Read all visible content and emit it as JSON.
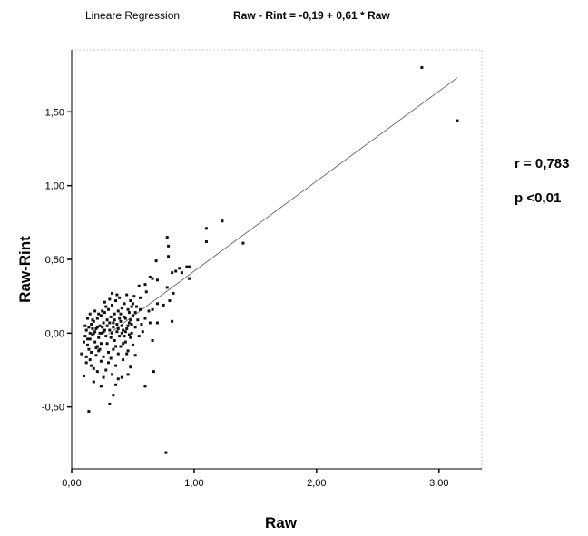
{
  "header": {
    "regression_label": "Lineare Regression",
    "equation": "Raw - Rint = -0,19 + 0,61 * Raw"
  },
  "stats": {
    "r": "r = 0,783",
    "p": "p <0,01"
  },
  "chart_data": {
    "type": "scatter",
    "xlabel": "Raw",
    "ylabel": "Raw-Rint",
    "xlim": [
      0.0,
      3.35
    ],
    "ylim": [
      -0.92,
      1.92
    ],
    "xticks": [
      0,
      1,
      2,
      3
    ],
    "xtick_labels": [
      "0,00",
      "1,00",
      "2,00",
      "3,00"
    ],
    "yticks": [
      -0.5,
      0,
      0.5,
      1,
      1.5
    ],
    "ytick_labels": [
      "-0,50",
      "0,00",
      "0,50",
      "1,00",
      "1,50"
    ],
    "regression": {
      "intercept": -0.19,
      "slope": 0.61,
      "x_range": [
        0.3,
        3.15
      ]
    },
    "grid": false,
    "series": [
      {
        "points": [
          [
            2.86,
            1.8
          ],
          [
            3.15,
            1.44
          ],
          [
            1.23,
            0.76
          ],
          [
            1.1,
            0.71
          ],
          [
            1.1,
            0.62
          ],
          [
            1.4,
            0.61
          ],
          [
            0.78,
            0.65
          ],
          [
            0.79,
            0.59
          ],
          [
            0.79,
            0.52
          ],
          [
            0.69,
            0.49
          ],
          [
            0.88,
            0.44
          ],
          [
            0.94,
            0.45
          ],
          [
            0.96,
            0.45
          ],
          [
            0.82,
            0.41
          ],
          [
            0.85,
            0.42
          ],
          [
            0.9,
            0.41
          ],
          [
            0.96,
            0.37
          ],
          [
            0.78,
            0.31
          ],
          [
            0.83,
            0.27
          ],
          [
            0.8,
            0.22
          ],
          [
            0.75,
            0.19
          ],
          [
            0.7,
            0.2
          ],
          [
            0.6,
            0.33
          ],
          [
            0.55,
            0.32
          ],
          [
            0.64,
            0.38
          ],
          [
            0.66,
            0.37
          ],
          [
            0.7,
            0.36
          ],
          [
            0.61,
            0.28
          ],
          [
            0.56,
            0.24
          ],
          [
            0.66,
            0.16
          ],
          [
            0.6,
            0.1
          ],
          [
            0.64,
            0.07
          ],
          [
            0.63,
            0.15
          ],
          [
            0.7,
            0.07
          ],
          [
            0.66,
            -0.05
          ],
          [
            0.82,
            0.08
          ],
          [
            0.67,
            -0.26
          ],
          [
            0.6,
            -0.36
          ],
          [
            0.77,
            -0.81
          ],
          [
            0.14,
            -0.53
          ],
          [
            0.31,
            -0.48
          ],
          [
            0.34,
            -0.42
          ],
          [
            0.36,
            -0.35
          ],
          [
            0.24,
            -0.36
          ],
          [
            0.41,
            -0.3
          ],
          [
            0.46,
            -0.28
          ],
          [
            0.48,
            -0.23
          ],
          [
            0.52,
            -0.15
          ],
          [
            0.1,
            -0.29
          ],
          [
            0.08,
            -0.14
          ],
          [
            0.12,
            -0.2
          ],
          [
            0.15,
            -0.18
          ],
          [
            0.16,
            -0.22
          ],
          [
            0.18,
            -0.24
          ],
          [
            0.2,
            -0.15
          ],
          [
            0.22,
            -0.12
          ],
          [
            0.24,
            -0.19
          ],
          [
            0.26,
            -0.16
          ],
          [
            0.28,
            -0.25
          ],
          [
            0.3,
            -0.2
          ],
          [
            0.32,
            -0.17
          ],
          [
            0.34,
            -0.11
          ],
          [
            0.36,
            -0.22
          ],
          [
            0.38,
            -0.14
          ],
          [
            0.4,
            -0.09
          ],
          [
            0.42,
            -0.18
          ],
          [
            0.44,
            -0.06
          ],
          [
            0.46,
            -0.12
          ],
          [
            0.48,
            -0.03
          ],
          [
            0.5,
            -0.08
          ],
          [
            0.1,
            -0.06
          ],
          [
            0.11,
            -0.02
          ],
          [
            0.12,
            0.02
          ],
          [
            0.13,
            -0.08
          ],
          [
            0.14,
            0.04
          ],
          [
            0.15,
            -0.04
          ],
          [
            0.16,
            0.06
          ],
          [
            0.17,
            -0.01
          ],
          [
            0.18,
            0.08
          ],
          [
            0.19,
            -0.06
          ],
          [
            0.2,
            0.03
          ],
          [
            0.21,
            0.1
          ],
          [
            0.22,
            -0.03
          ],
          [
            0.23,
            0.05
          ],
          [
            0.24,
            0.12
          ],
          [
            0.25,
            0.0
          ],
          [
            0.26,
            0.07
          ],
          [
            0.27,
            0.14
          ],
          [
            0.28,
            -0.02
          ],
          [
            0.29,
            0.09
          ],
          [
            0.3,
            0.16
          ],
          [
            0.31,
            0.02
          ],
          [
            0.32,
            0.11
          ],
          [
            0.33,
            0.19
          ],
          [
            0.34,
            0.04
          ],
          [
            0.35,
            0.13
          ],
          [
            0.36,
            0.22
          ],
          [
            0.37,
            0.06
          ],
          [
            0.38,
            0.15
          ],
          [
            0.39,
            0.24
          ],
          [
            0.4,
            0.08
          ],
          [
            0.41,
            0.17
          ],
          [
            0.42,
            0.02
          ],
          [
            0.43,
            0.2
          ],
          [
            0.44,
            0.1
          ],
          [
            0.45,
            0.26
          ],
          [
            0.46,
            0.05
          ],
          [
            0.47,
            0.14
          ],
          [
            0.48,
            0.22
          ],
          [
            0.49,
            0.0
          ],
          [
            0.5,
            0.12
          ],
          [
            0.51,
            0.25
          ],
          [
            0.52,
            0.04
          ],
          [
            0.53,
            0.18
          ],
          [
            0.54,
            0.09
          ],
          [
            0.56,
            0.16
          ],
          [
            0.58,
            0.01
          ],
          [
            0.13,
            0.1
          ],
          [
            0.15,
            0.13
          ],
          [
            0.17,
            0.09
          ],
          [
            0.19,
            0.15
          ],
          [
            0.21,
            -0.09
          ],
          [
            0.23,
            -0.11
          ],
          [
            0.25,
            0.15
          ],
          [
            0.27,
            0.21
          ],
          [
            0.29,
            -0.07
          ],
          [
            0.31,
            0.23
          ],
          [
            0.33,
            0.27
          ],
          [
            0.35,
            -0.05
          ],
          [
            0.37,
            0.26
          ],
          [
            0.39,
            -0.02
          ],
          [
            0.41,
            0.05
          ],
          [
            0.43,
            0.11
          ],
          [
            0.45,
            -0.14
          ],
          [
            0.47,
            0.07
          ],
          [
            0.49,
            0.18
          ],
          [
            0.14,
            -0.11
          ],
          [
            0.16,
            -0.13
          ],
          [
            0.18,
            0.0
          ],
          [
            0.2,
            -0.1
          ],
          [
            0.22,
            0.13
          ],
          [
            0.24,
            -0.07
          ],
          [
            0.26,
            0.01
          ],
          [
            0.28,
            0.18
          ],
          [
            0.3,
            -0.13
          ],
          [
            0.32,
            -0.03
          ],
          [
            0.34,
            0.07
          ],
          [
            0.36,
            -0.09
          ],
          [
            0.38,
            0.03
          ],
          [
            0.4,
            0.13
          ],
          [
            0.42,
            -0.07
          ],
          [
            0.44,
            0.01
          ],
          [
            0.46,
            0.16
          ],
          [
            0.48,
            0.09
          ],
          [
            0.5,
            0.2
          ],
          [
            0.52,
            0.14
          ],
          [
            0.12,
            -0.16
          ],
          [
            0.11,
            0.05
          ],
          [
            0.13,
            -0.04
          ],
          [
            0.15,
            0.0
          ],
          [
            0.17,
            0.03
          ],
          [
            0.19,
            0.01
          ],
          [
            0.21,
            0.04
          ],
          [
            0.23,
            0.0
          ],
          [
            0.25,
            0.04
          ],
          [
            0.27,
            0.02
          ],
          [
            0.29,
            0.05
          ],
          [
            0.31,
            0.07
          ],
          [
            0.33,
            0.0
          ],
          [
            0.35,
            0.09
          ],
          [
            0.37,
            0.01
          ],
          [
            0.39,
            0.1
          ],
          [
            0.41,
            0.0
          ],
          [
            0.43,
            -0.02
          ],
          [
            0.45,
            0.03
          ],
          [
            0.47,
            -0.01
          ],
          [
            0.49,
            0.06
          ],
          [
            0.55,
            -0.02
          ],
          [
            0.57,
            0.06
          ],
          [
            0.21,
            -0.26
          ],
          [
            0.26,
            -0.3
          ],
          [
            0.18,
            -0.33
          ],
          [
            0.33,
            -0.28
          ],
          [
            0.38,
            -0.31
          ]
        ]
      }
    ]
  }
}
